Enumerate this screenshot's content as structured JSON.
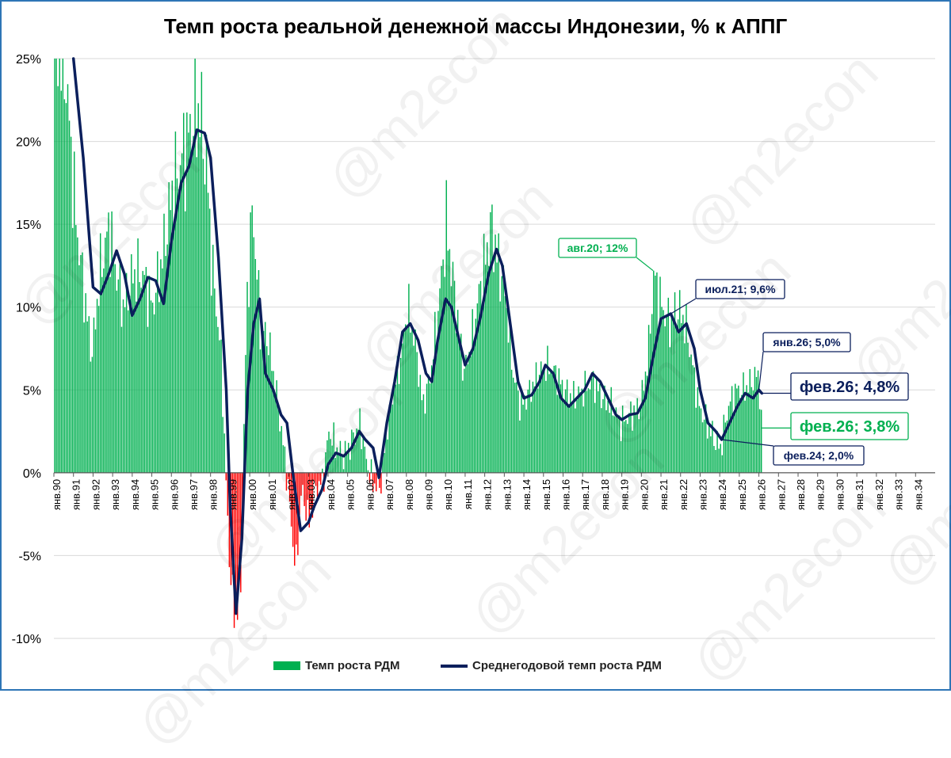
{
  "chart_data": {
    "type": "bar+line",
    "title": "Темп роста реальной денежной массы Индонезии, % к АППГ",
    "xlabel": "",
    "ylabel": "",
    "ylim": [
      -10,
      25
    ],
    "yticks": [
      "-10%",
      "-5%",
      "0%",
      "5%",
      "10%",
      "15%",
      "20%",
      "25%"
    ],
    "ytick_values": [
      -10,
      -5,
      0,
      5,
      10,
      15,
      20,
      25
    ],
    "grid": true,
    "legend_position": "bottom",
    "x_tick_labels": [
      "янв.90",
      "янв.91",
      "янв.92",
      "янв.93",
      "янв.94",
      "янв.95",
      "янв.96",
      "янв.97",
      "янв.98",
      "янв.99",
      "янв.00",
      "янв.01",
      "янв.02",
      "янв.03",
      "янв.04",
      "янв.05",
      "янв.06",
      "янв.07",
      "янв.08",
      "янв.09",
      "янв.10",
      "янв.11",
      "янв.12",
      "янв.13",
      "янв.14",
      "янв.15",
      "янв.16",
      "янв.17",
      "янв.18",
      "янв.19",
      "янв.20",
      "янв.21",
      "янв.22",
      "янв.23",
      "янв.24",
      "янв.25",
      "янв.26",
      "янв.27",
      "янв.28",
      "янв.29",
      "янв.30",
      "янв.31",
      "янв.32",
      "янв.33",
      "янв.34"
    ],
    "x_range_years": [
      1990,
      2035
    ],
    "bar_series": {
      "name": "Темп роста РДМ",
      "color": "#00b050",
      "negative_color": "#ff0000",
      "anchors": [
        [
          1990.0,
          26
        ],
        [
          1990.5,
          25
        ],
        [
          1991.1,
          15
        ],
        [
          1991.6,
          10
        ],
        [
          1991.9,
          7
        ],
        [
          1992.3,
          12
        ],
        [
          1992.8,
          15
        ],
        [
          1993.0,
          13
        ],
        [
          1993.5,
          10
        ],
        [
          1994.0,
          12
        ],
        [
          1994.5,
          12
        ],
        [
          1995.0,
          10
        ],
        [
          1995.5,
          13
        ],
        [
          1996.0,
          17
        ],
        [
          1996.5,
          19
        ],
        [
          1997.0,
          21
        ],
        [
          1997.4,
          22
        ],
        [
          1997.8,
          18
        ],
        [
          1998.0,
          13
        ],
        [
          1998.5,
          7
        ],
        [
          1998.9,
          -5
        ],
        [
          1999.2,
          -9
        ],
        [
          1999.5,
          -7
        ],
        [
          1999.8,
          10
        ],
        [
          2000.1,
          16
        ],
        [
          2000.5,
          9
        ],
        [
          2000.9,
          8
        ],
        [
          2001.3,
          5
        ],
        [
          2001.8,
          0.5
        ],
        [
          2002.0,
          -2
        ],
        [
          2002.3,
          -6
        ],
        [
          2002.6,
          -1
        ],
        [
          2003.0,
          -3
        ],
        [
          2003.3,
          -1
        ],
        [
          2003.7,
          -0.5
        ],
        [
          2004.0,
          2.5
        ],
        [
          2004.4,
          1.5
        ],
        [
          2004.8,
          1
        ],
        [
          2005.2,
          2
        ],
        [
          2005.6,
          3
        ],
        [
          2005.9,
          0.8
        ],
        [
          2006.2,
          -0.5
        ],
        [
          2006.6,
          -1
        ],
        [
          2007.0,
          3
        ],
        [
          2007.3,
          5
        ],
        [
          2007.7,
          7
        ],
        [
          2008.0,
          10
        ],
        [
          2008.4,
          8
        ],
        [
          2008.8,
          4
        ],
        [
          2009.2,
          6
        ],
        [
          2009.6,
          10
        ],
        [
          2010.0,
          15
        ],
        [
          2010.4,
          11
        ],
        [
          2010.9,
          6
        ],
        [
          2011.3,
          8
        ],
        [
          2011.7,
          11
        ],
        [
          2012.0,
          13
        ],
        [
          2012.3,
          15
        ],
        [
          2012.6,
          13
        ],
        [
          2013.0,
          11
        ],
        [
          2013.4,
          6
        ],
        [
          2013.8,
          4
        ],
        [
          2014.3,
          5
        ],
        [
          2014.7,
          6
        ],
        [
          2015.1,
          6.5
        ],
        [
          2015.6,
          6
        ],
        [
          2016.0,
          5
        ],
        [
          2016.5,
          4.5
        ],
        [
          2017.0,
          5
        ],
        [
          2017.5,
          5.5
        ],
        [
          2018.0,
          4.5
        ],
        [
          2018.5,
          4
        ],
        [
          2018.9,
          3
        ],
        [
          2019.4,
          3.5
        ],
        [
          2019.9,
          4
        ],
        [
          2020.3,
          7
        ],
        [
          2020.6,
          12
        ],
        [
          2021.0,
          10
        ],
        [
          2021.4,
          9
        ],
        [
          2021.8,
          10
        ],
        [
          2022.2,
          9
        ],
        [
          2022.5,
          7
        ],
        [
          2022.9,
          4
        ],
        [
          2023.3,
          3
        ],
        [
          2023.7,
          2
        ],
        [
          2024.0,
          1.5
        ],
        [
          2024.4,
          4
        ],
        [
          2024.8,
          5
        ],
        [
          2025.2,
          5
        ],
        [
          2025.6,
          5.5
        ],
        [
          2025.9,
          6
        ],
        [
          2026.1,
          3.8
        ]
      ]
    },
    "line_series": {
      "name": "Среднегодовой темп роста РДМ",
      "color": "#0b1f5c",
      "points": [
        [
          1991.0,
          25.5
        ],
        [
          1991.5,
          19
        ],
        [
          1992.0,
          11.2
        ],
        [
          1992.4,
          10.8
        ],
        [
          1992.8,
          12
        ],
        [
          1993.2,
          13.4
        ],
        [
          1993.6,
          12
        ],
        [
          1994.0,
          9.5
        ],
        [
          1994.4,
          10.5
        ],
        [
          1994.8,
          11.8
        ],
        [
          1995.2,
          11.6
        ],
        [
          1995.6,
          10.2
        ],
        [
          1996.0,
          14
        ],
        [
          1996.5,
          17.5
        ],
        [
          1996.9,
          18.5
        ],
        [
          1997.3,
          20.7
        ],
        [
          1997.7,
          20.5
        ],
        [
          1998.0,
          19
        ],
        [
          1998.4,
          13
        ],
        [
          1998.8,
          5
        ],
        [
          1999.0,
          -2
        ],
        [
          1999.3,
          -8.5
        ],
        [
          1999.6,
          -4
        ],
        [
          1999.9,
          5
        ],
        [
          2000.2,
          9
        ],
        [
          2000.5,
          10.5
        ],
        [
          2000.8,
          6
        ],
        [
          2001.2,
          5
        ],
        [
          2001.6,
          3.5
        ],
        [
          2001.9,
          3
        ],
        [
          2002.2,
          0
        ],
        [
          2002.6,
          -3.5
        ],
        [
          2003.0,
          -3
        ],
        [
          2003.3,
          -2
        ],
        [
          2003.7,
          -1
        ],
        [
          2004.0,
          0.5
        ],
        [
          2004.4,
          1.2
        ],
        [
          2004.8,
          1
        ],
        [
          2005.2,
          1.5
        ],
        [
          2005.6,
          2.5
        ],
        [
          2005.9,
          2
        ],
        [
          2006.3,
          1.5
        ],
        [
          2006.6,
          -0.3
        ],
        [
          2007.0,
          3
        ],
        [
          2007.4,
          5.5
        ],
        [
          2007.8,
          8.5
        ],
        [
          2008.2,
          9
        ],
        [
          2008.6,
          8
        ],
        [
          2009.0,
          6
        ],
        [
          2009.3,
          5.5
        ],
        [
          2009.6,
          8
        ],
        [
          2010.0,
          10.5
        ],
        [
          2010.3,
          10
        ],
        [
          2010.7,
          8
        ],
        [
          2011.0,
          6.5
        ],
        [
          2011.4,
          7.5
        ],
        [
          2011.8,
          9.5
        ],
        [
          2012.2,
          12
        ],
        [
          2012.6,
          13.5
        ],
        [
          2012.9,
          12.5
        ],
        [
          2013.3,
          9
        ],
        [
          2013.7,
          5.5
        ],
        [
          2014.0,
          4.5
        ],
        [
          2014.4,
          4.7
        ],
        [
          2014.8,
          5.5
        ],
        [
          2015.1,
          6.5
        ],
        [
          2015.5,
          6
        ],
        [
          2015.9,
          4.5
        ],
        [
          2016.3,
          4
        ],
        [
          2016.7,
          4.5
        ],
        [
          2017.1,
          5
        ],
        [
          2017.5,
          6
        ],
        [
          2017.9,
          5.5
        ],
        [
          2018.3,
          4.5
        ],
        [
          2018.7,
          3.5
        ],
        [
          2019.0,
          3.2
        ],
        [
          2019.4,
          3.5
        ],
        [
          2019.8,
          3.6
        ],
        [
          2020.2,
          4.5
        ],
        [
          2020.6,
          7
        ],
        [
          2021.0,
          9.3
        ],
        [
          2021.5,
          9.6
        ],
        [
          2021.9,
          8.5
        ],
        [
          2022.3,
          9
        ],
        [
          2022.7,
          7.5
        ],
        [
          2023.0,
          5
        ],
        [
          2023.4,
          3
        ],
        [
          2023.8,
          2.5
        ],
        [
          2024.1,
          2
        ],
        [
          2024.5,
          3
        ],
        [
          2024.9,
          4
        ],
        [
          2025.3,
          4.8
        ],
        [
          2025.7,
          4.5
        ],
        [
          2026.0,
          5
        ],
        [
          2026.15,
          4.8
        ]
      ]
    },
    "annotations": [
      {
        "text": "авг.20; 12%",
        "x": 2020.6,
        "y": 12.2,
        "style": "green"
      },
      {
        "text": "июл.21; 9,6%",
        "x": 2021.5,
        "y": 9.6,
        "style": "navy"
      },
      {
        "text": "янв.26; 5,0%",
        "x": 2026.0,
        "y": 5.0,
        "style": "navy"
      },
      {
        "text": "фев.26; 4,8%",
        "x": 2026.15,
        "y": 4.8,
        "style": "navy-large"
      },
      {
        "text": "фев.26; 3,8%",
        "x": 2026.15,
        "y": 2.7,
        "style": "green-large"
      },
      {
        "text": "фев.24; 2,0%",
        "x": 2024.1,
        "y": 2.0,
        "style": "navy"
      }
    ],
    "watermark": "@m2econ"
  }
}
